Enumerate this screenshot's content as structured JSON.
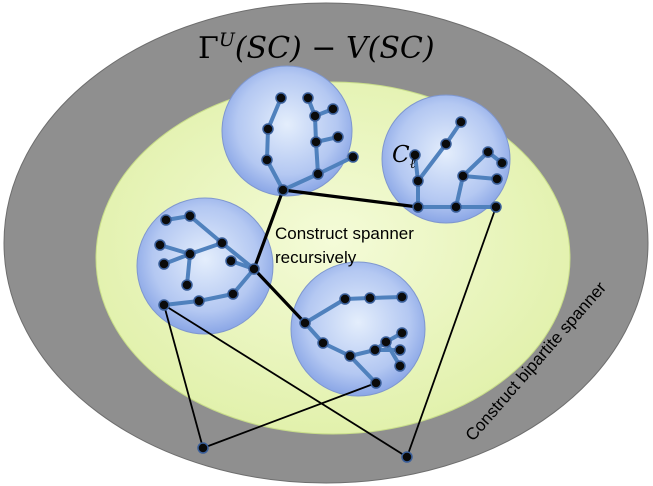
{
  "title": {
    "Gamma": "Γ",
    "sup": "U",
    "rest": "(SC) − V(SC)"
  },
  "cluster_label": {
    "letter": "C",
    "sub": "ℓ"
  },
  "inner_label": {
    "line1": "Construct spanner",
    "line2": "recursively"
  },
  "outer_label": "Construct bipartite spanner",
  "colors": {
    "outer_ring": "#8f8f8f",
    "inner_region": "#e8f5b8",
    "cluster_fill_center": "#dce8fb",
    "cluster_fill_edge": "#8aa6e6",
    "tree_edge": "#4f81bd",
    "node": "#0a0a0a",
    "connector": "#000000"
  }
}
